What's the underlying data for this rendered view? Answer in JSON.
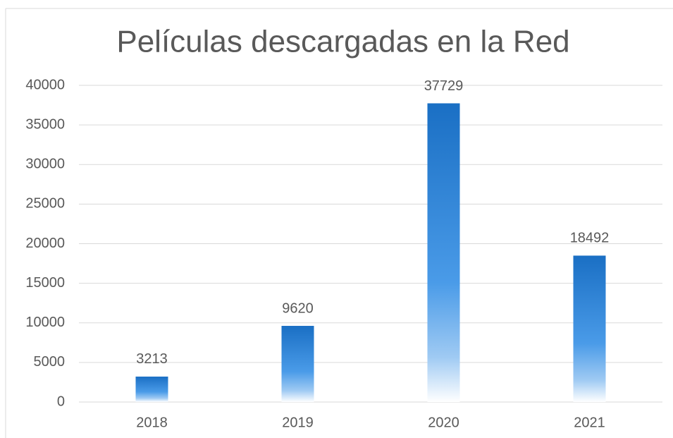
{
  "chart_data": {
    "type": "bar",
    "title": "Películas descargadas en la Red",
    "categories": [
      "2018",
      "2019",
      "2020",
      "2021"
    ],
    "values": [
      3213,
      9620,
      37729,
      18492
    ],
    "color": "#1a6fc4",
    "ylim": [
      0,
      40000
    ],
    "yticks": [
      0,
      5000,
      10000,
      15000,
      20000,
      25000,
      30000,
      35000,
      40000
    ],
    "grid": true
  }
}
